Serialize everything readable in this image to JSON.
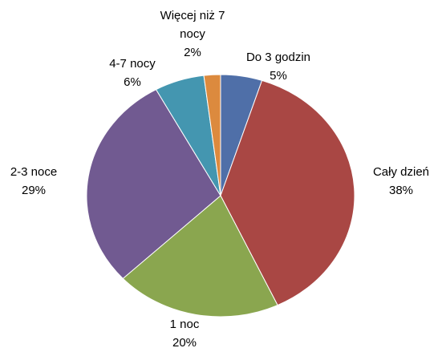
{
  "chart_data": {
    "type": "pie",
    "categories": [
      "Do 3 godzin",
      "Cały dzień",
      "1 noc",
      "2-3 noce",
      "4-7 nocy",
      "Więcej niż 7 nocy"
    ],
    "values": [
      5,
      38,
      20,
      29,
      6,
      2
    ],
    "value_labels": [
      "5%",
      "38%",
      "20%",
      "29%",
      "6%",
      "2%"
    ],
    "colors": [
      "#4f6fa8",
      "#a94744",
      "#8aa64f",
      "#715a91",
      "#4496b0",
      "#dc8a3e"
    ]
  }
}
